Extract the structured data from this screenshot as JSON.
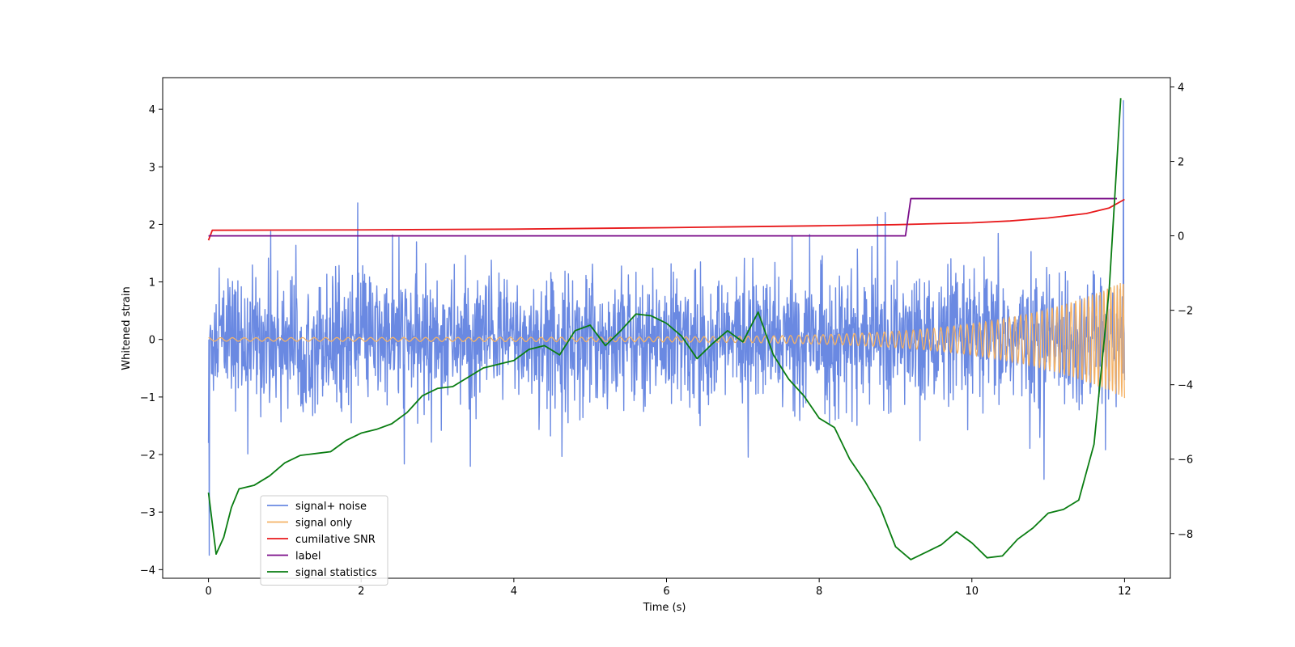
{
  "chart_data": {
    "type": "line",
    "title": "",
    "xlabel": "Time (s)",
    "ylabel": "Whitened strain",
    "xlim": [
      -0.6,
      12.6
    ],
    "ylim": [
      -4.15,
      4.55
    ],
    "y2lim": [
      -9.2,
      4.25
    ],
    "x_ticks": [
      0,
      2,
      4,
      6,
      8,
      10,
      12
    ],
    "x_tick_labels": [
      "0",
      "2",
      "4",
      "6",
      "8",
      "10",
      "12"
    ],
    "y_ticks": [
      -4,
      -3,
      -2,
      -1,
      0,
      1,
      2,
      3,
      4
    ],
    "y_tick_labels": [
      "−4",
      "−3",
      "−2",
      "−1",
      "0",
      "1",
      "2",
      "3",
      "4"
    ],
    "y2_ticks": [
      -8,
      -6,
      -4,
      -2,
      0,
      2,
      4
    ],
    "y2_tick_labels": [
      "−8",
      "−6",
      "−4",
      "−2",
      "0",
      "2",
      "4"
    ],
    "legend_position": "lower-left",
    "series": [
      {
        "name": "signal+ noise",
        "color": "#6a89e2",
        "axis": "left",
        "description": "noisy whitened strain, roughly ±1.2 band with spikes to ±2.5",
        "x_range": [
          0,
          12
        ],
        "mean": 0,
        "band": 1.2,
        "max": 4.15,
        "min": -3.75
      },
      {
        "name": "signal only",
        "color": "#f5b265",
        "axis": "left",
        "description": "chirp oscillation growing in amplitude toward t=12",
        "x_range": [
          0,
          12
        ],
        "amplitude_start": 0.03,
        "amplitude_end": 1.0
      },
      {
        "name": "cumilative SNR",
        "color": "#e8191b",
        "axis": "right",
        "x": [
          0,
          0.05,
          2,
          4,
          6,
          8,
          9,
          10,
          10.5,
          11,
          11.5,
          11.8,
          12
        ],
        "y": [
          -0.12,
          0.15,
          0.16,
          0.18,
          0.22,
          0.27,
          0.3,
          0.35,
          0.4,
          0.48,
          0.6,
          0.75,
          0.98
        ]
      },
      {
        "name": "label",
        "color": "#7b0f8a",
        "axis": "right",
        "x": [
          0,
          9.13,
          9.2,
          11.9
        ],
        "y": [
          0,
          0,
          1,
          1
        ]
      },
      {
        "name": "signal statistics",
        "color": "#0a7d12",
        "axis": "right",
        "x": [
          0,
          0.1,
          0.2,
          0.3,
          0.4,
          0.6,
          0.8,
          1.0,
          1.2,
          1.4,
          1.6,
          1.8,
          2.0,
          2.2,
          2.4,
          2.6,
          2.8,
          3.0,
          3.2,
          3.4,
          3.6,
          3.8,
          4.0,
          4.2,
          4.4,
          4.6,
          4.8,
          5.0,
          5.2,
          5.4,
          5.6,
          5.8,
          6.0,
          6.2,
          6.4,
          6.6,
          6.8,
          7.0,
          7.2,
          7.4,
          7.6,
          7.8,
          8.0,
          8.2,
          8.4,
          8.6,
          8.8,
          9.0,
          9.2,
          9.4,
          9.6,
          9.8,
          10.0,
          10.2,
          10.4,
          10.6,
          10.8,
          11.0,
          11.2,
          11.4,
          11.6,
          11.8,
          11.95
        ],
        "y": [
          -6.9,
          -8.55,
          -8.1,
          -7.3,
          -6.8,
          -6.7,
          -6.45,
          -6.1,
          -5.9,
          -5.85,
          -5.8,
          -5.5,
          -5.3,
          -5.2,
          -5.05,
          -4.75,
          -4.3,
          -4.1,
          -4.05,
          -3.8,
          -3.55,
          -3.45,
          -3.35,
          -3.05,
          -2.95,
          -3.2,
          -2.55,
          -2.4,
          -2.95,
          -2.55,
          -2.1,
          -2.15,
          -2.35,
          -2.7,
          -3.3,
          -2.9,
          -2.55,
          -2.85,
          -2.05,
          -3.2,
          -3.85,
          -4.3,
          -4.9,
          -5.15,
          -6.0,
          -6.6,
          -7.3,
          -8.35,
          -8.7,
          -8.5,
          -8.3,
          -7.95,
          -8.25,
          -8.65,
          -8.6,
          -8.15,
          -7.85,
          -7.45,
          -7.35,
          -7.1,
          -5.6,
          -1.4,
          3.7
        ]
      }
    ]
  }
}
